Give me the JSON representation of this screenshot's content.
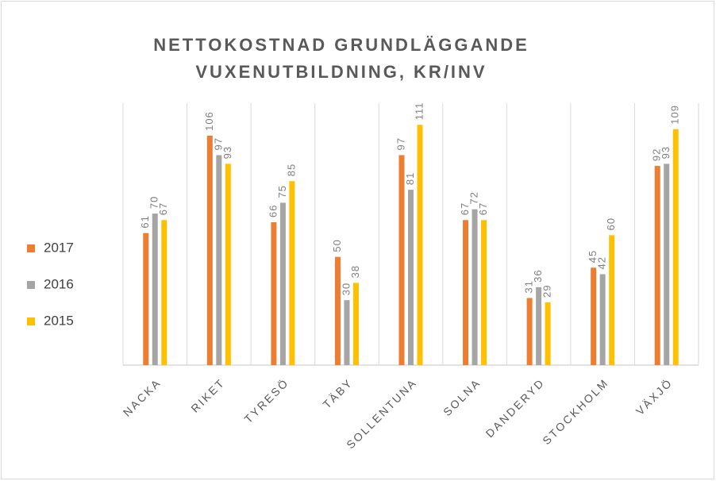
{
  "chart_data": {
    "type": "bar",
    "title": [
      "NETTOKOSTNAD GRUNDLÄGGANDE",
      "VUXENUTBILDNING, KR/INV"
    ],
    "categories": [
      "NACKA",
      "RIKET",
      "TYRESÖ",
      "TÄBY",
      "SOLLENTUNA",
      "SOLNA",
      "DANDERYD",
      "STOCKHOLM",
      "VÄXJÖ"
    ],
    "series": [
      {
        "name": "2017",
        "color": "#ED7D31",
        "values": [
          61,
          106,
          66,
          50,
          97,
          67,
          31,
          45,
          92
        ]
      },
      {
        "name": "2016",
        "color": "#A5A5A5",
        "values": [
          70,
          97,
          75,
          30,
          81,
          72,
          36,
          42,
          93
        ]
      },
      {
        "name": "2015",
        "color": "#FFC000",
        "values": [
          67,
          93,
          85,
          38,
          111,
          67,
          29,
          60,
          109
        ]
      }
    ],
    "ylim": [
      0,
      121
    ],
    "legend": "left"
  }
}
